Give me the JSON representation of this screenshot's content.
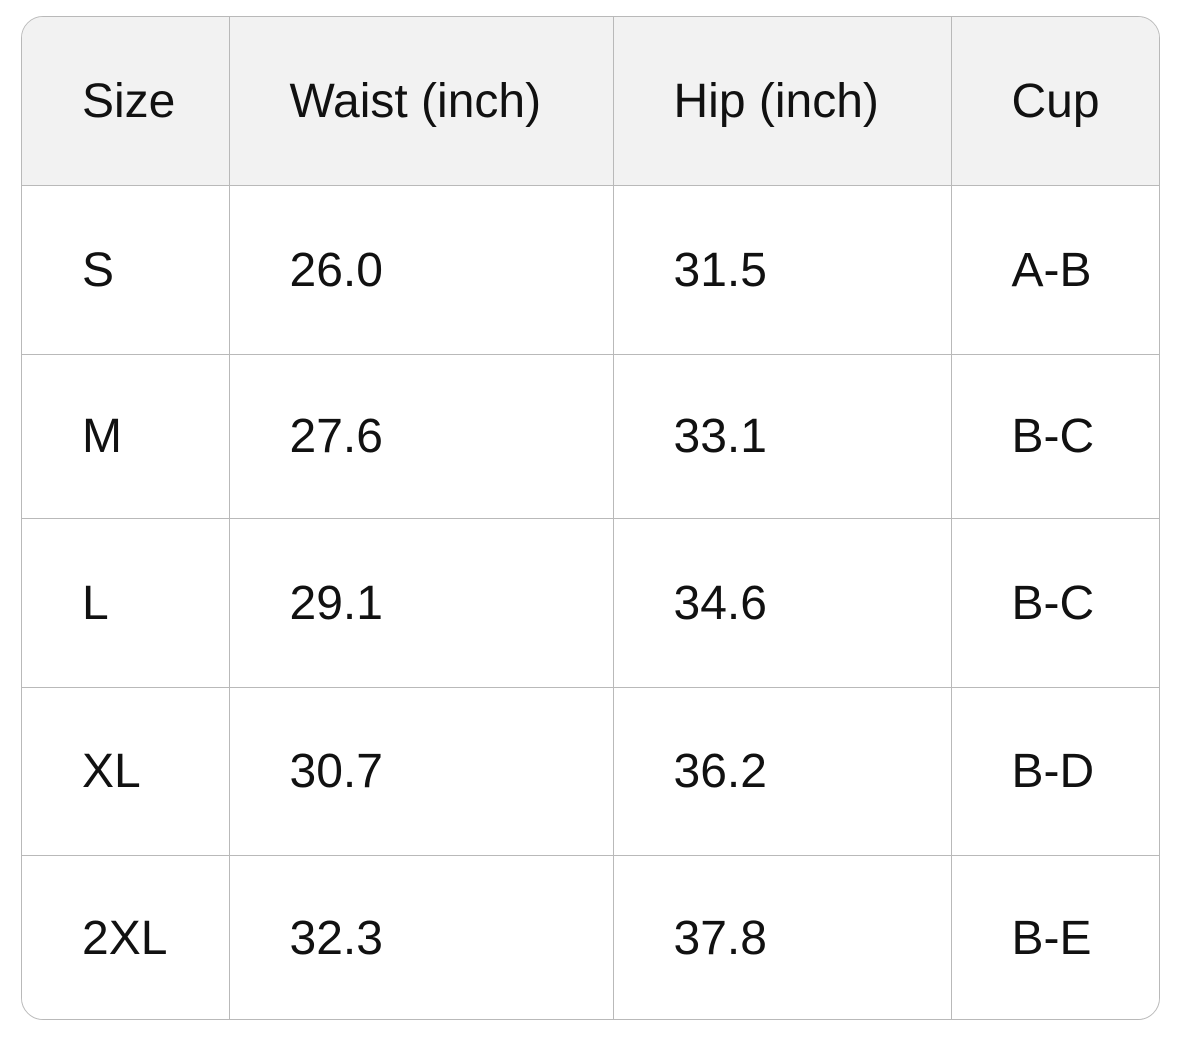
{
  "table": {
    "headers": [
      "Size",
      "Waist (inch)",
      "Hip (inch)",
      "Cup"
    ],
    "rows": [
      [
        "S",
        "26.0",
        "31.5",
        "A-B"
      ],
      [
        "M",
        "27.6",
        "33.1",
        "B-C"
      ],
      [
        "L",
        "29.1",
        "34.6",
        "B-C"
      ],
      [
        "XL",
        "30.7",
        "36.2",
        "B-D"
      ],
      [
        "2XL",
        "32.3",
        "37.8",
        "B-E"
      ]
    ]
  }
}
